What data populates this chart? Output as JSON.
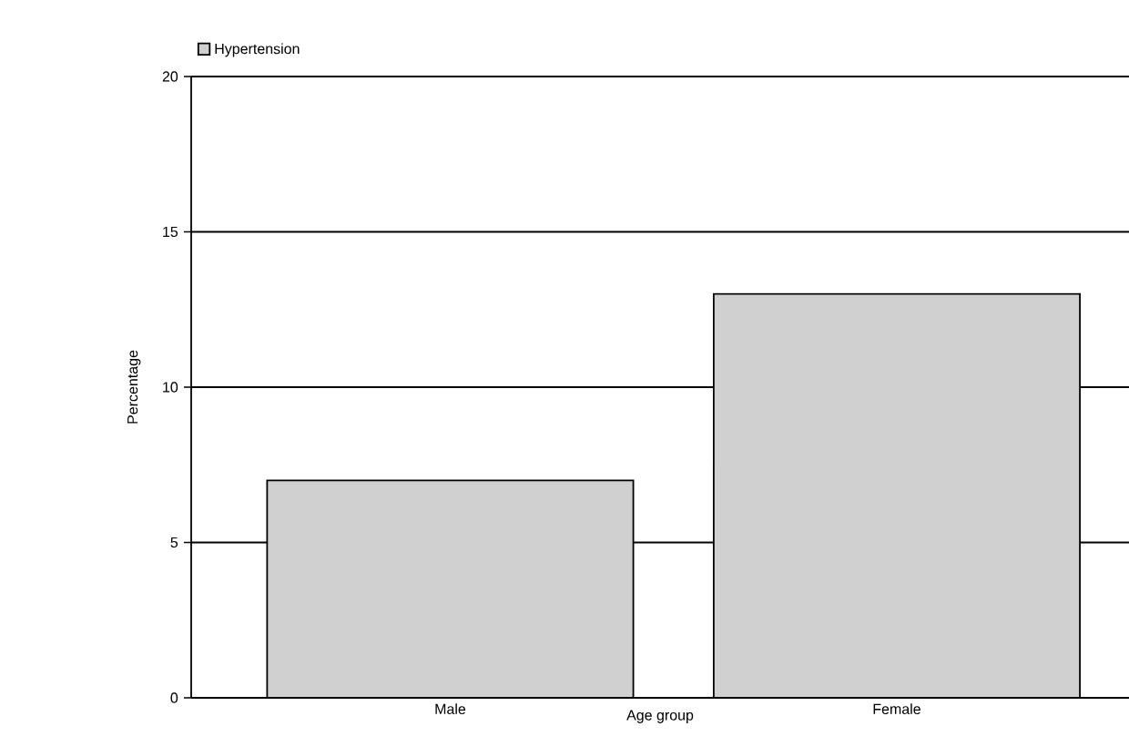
{
  "chart_data": {
    "type": "bar",
    "xlabel": "Age group",
    "ylabel": "Percentage",
    "categories": [
      "Male",
      "Female"
    ],
    "series": [
      {
        "name": "Hypertension",
        "color": "#d0d0d0",
        "values": [
          7,
          13
        ]
      }
    ],
    "ylim": [
      0,
      20
    ],
    "yticks": [
      0,
      5,
      10,
      15,
      20
    ],
    "grid": "y",
    "legend": "top left"
  }
}
